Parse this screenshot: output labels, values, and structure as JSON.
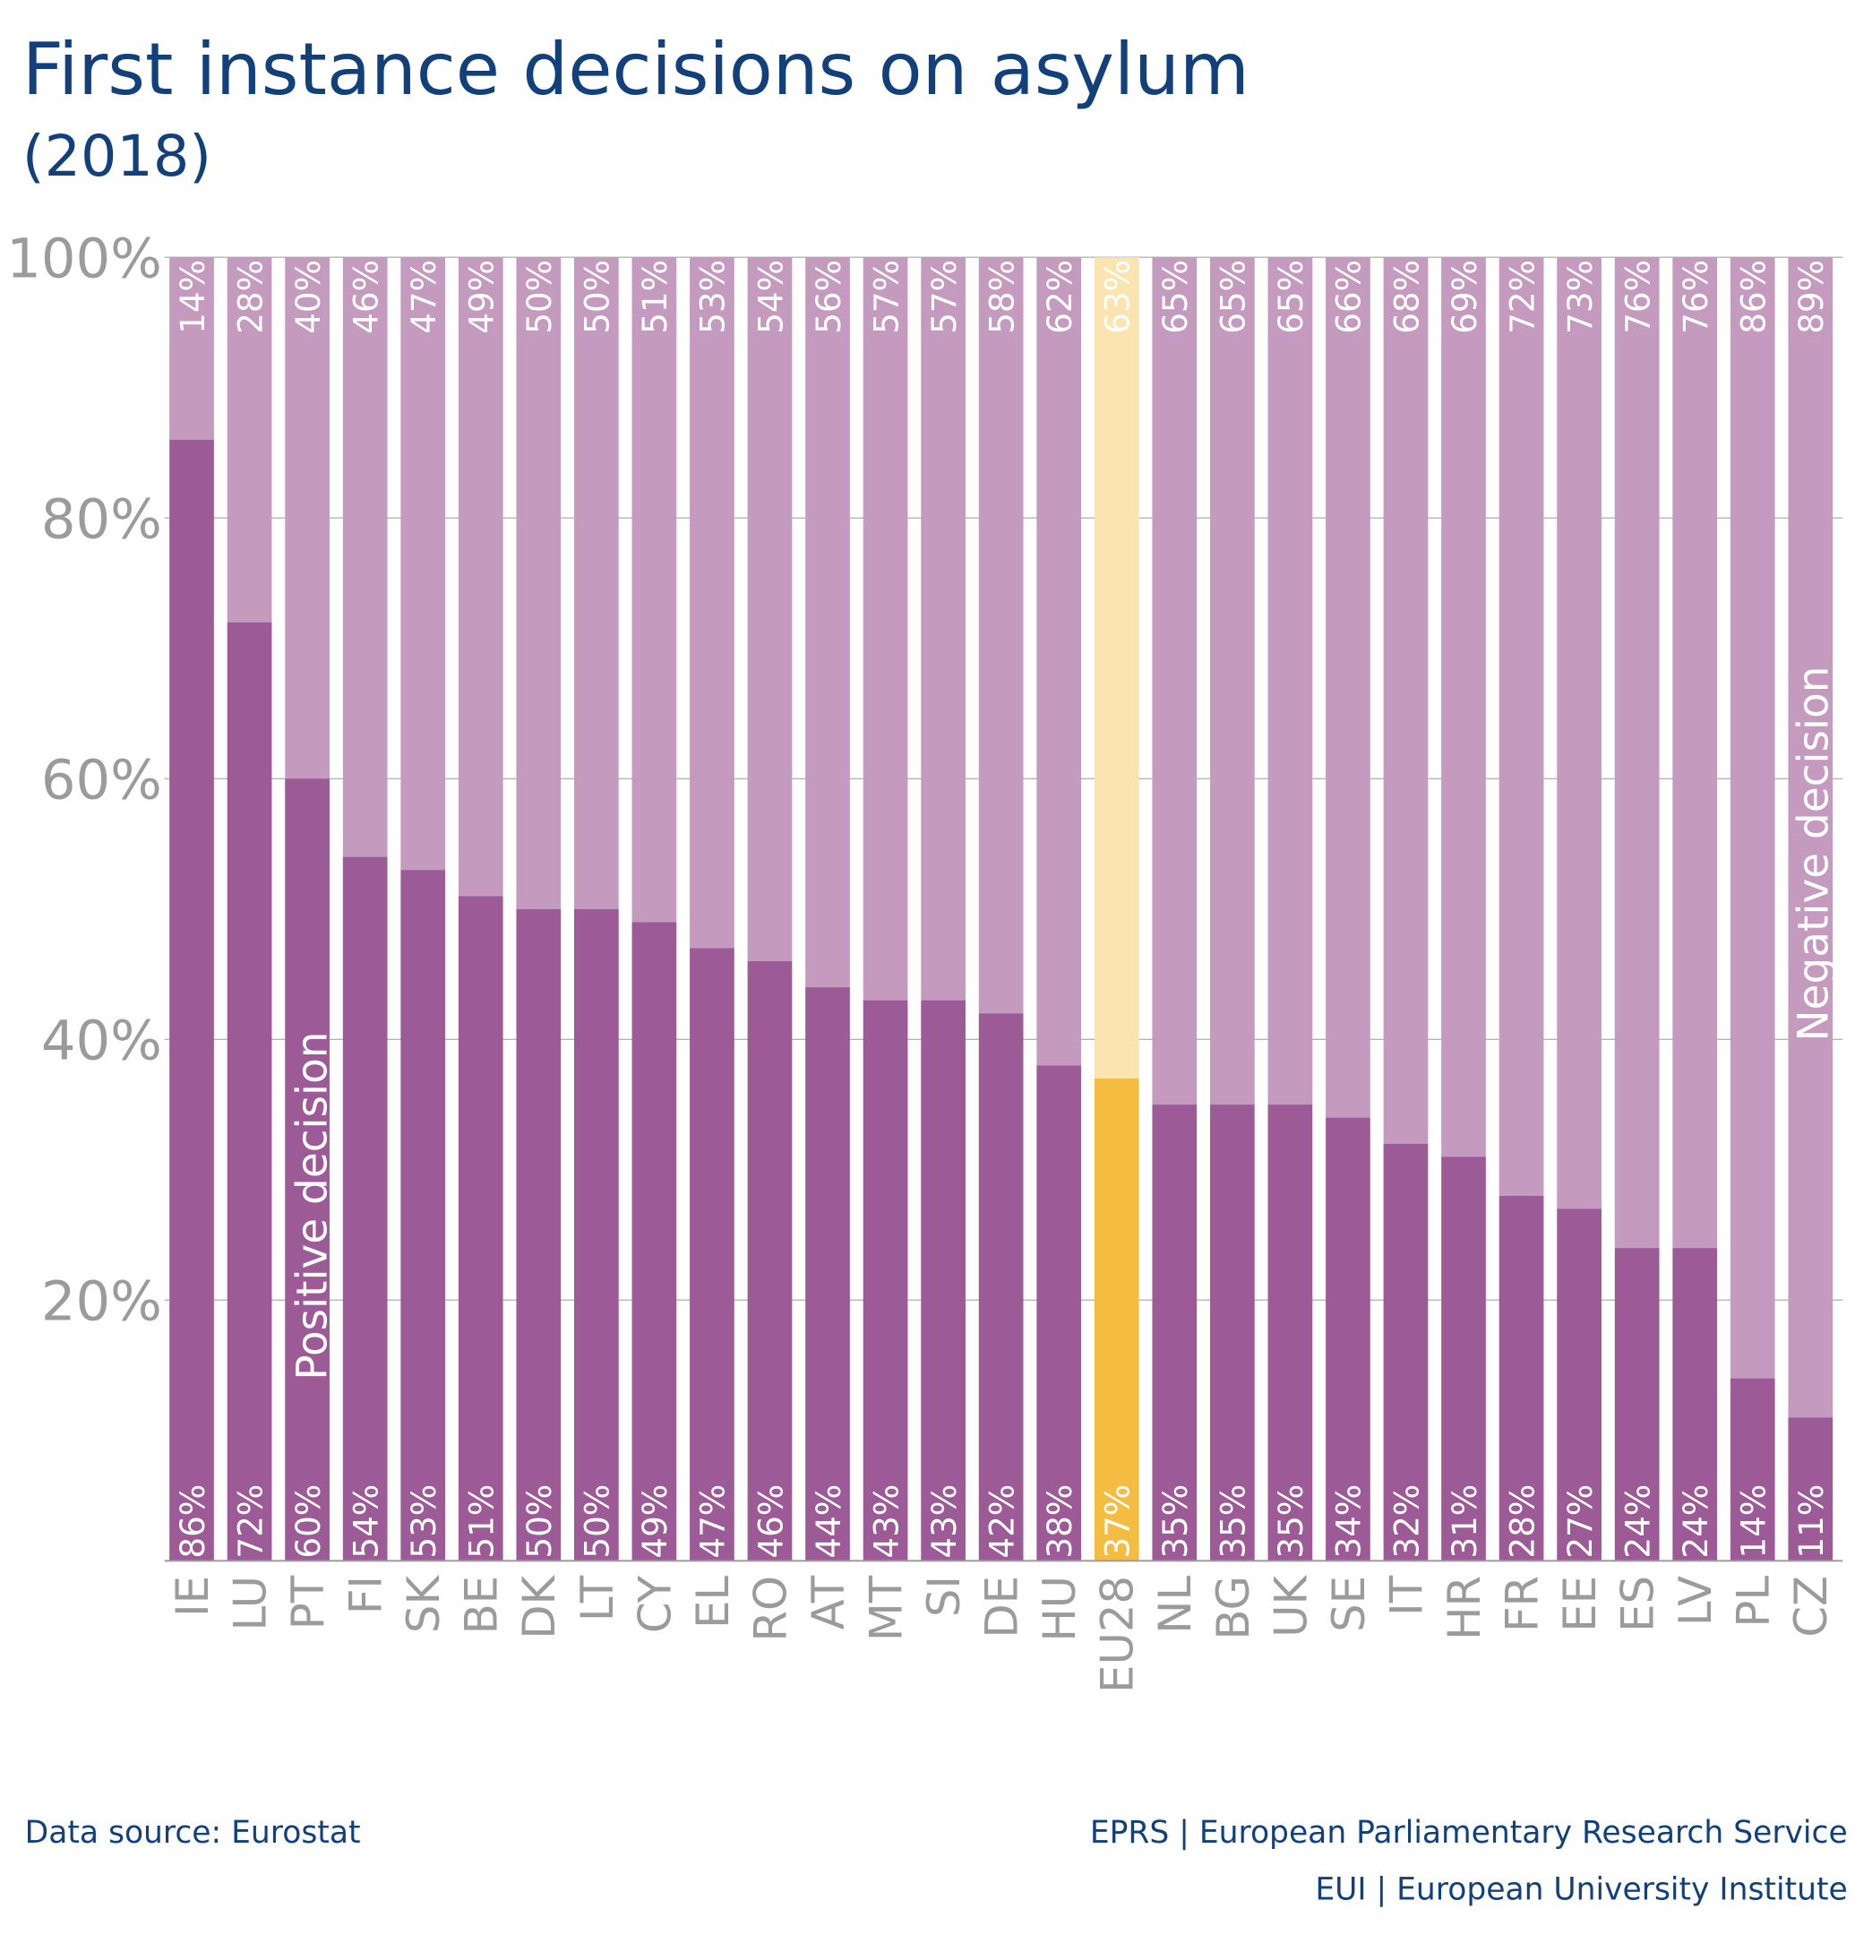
{
  "title": "First instance decisions on asylum",
  "subtitle": "(2018)",
  "footer": {
    "source": "Data source: Eurostat",
    "credit1": "EPRS | European Parliamentary Research Service",
    "credit2": "EUI | European University Institute"
  },
  "chart_data": {
    "type": "bar",
    "stacked": true,
    "percent": true,
    "ylim": [
      0,
      100
    ],
    "yticks": [
      "20%",
      "40%",
      "60%",
      "80%",
      "100%"
    ],
    "grid": true,
    "categories": [
      "IE",
      "LU",
      "PT",
      "FI",
      "SK",
      "BE",
      "DK",
      "LT",
      "CY",
      "EL",
      "RO",
      "AT",
      "MT",
      "SI",
      "DE",
      "HU",
      "EU28",
      "NL",
      "BG",
      "UK",
      "SE",
      "IT",
      "HR",
      "FR",
      "EE",
      "ES",
      "LV",
      "PL",
      "CZ"
    ],
    "highlight": "EU28",
    "series": [
      {
        "name": "Positive decision",
        "values": [
          86,
          72,
          60,
          54,
          53,
          51,
          50,
          50,
          49,
          47,
          46,
          44,
          43,
          43,
          42,
          38,
          37,
          35,
          35,
          35,
          34,
          32,
          31,
          28,
          27,
          24,
          24,
          14,
          11
        ]
      },
      {
        "name": "Negative decision",
        "values": [
          14,
          28,
          40,
          46,
          47,
          49,
          50,
          50,
          51,
          53,
          54,
          56,
          57,
          57,
          58,
          62,
          63,
          65,
          65,
          65,
          66,
          68,
          69,
          72,
          73,
          76,
          76,
          86,
          89
        ]
      }
    ],
    "colors": {
      "positive": "#9c5a96",
      "negative": "#c49abf",
      "highlight_positive": "#f4bd42",
      "highlight_negative": "#fbe4b0",
      "axis_text": "#9b9b9b",
      "title": "#12407a"
    }
  }
}
